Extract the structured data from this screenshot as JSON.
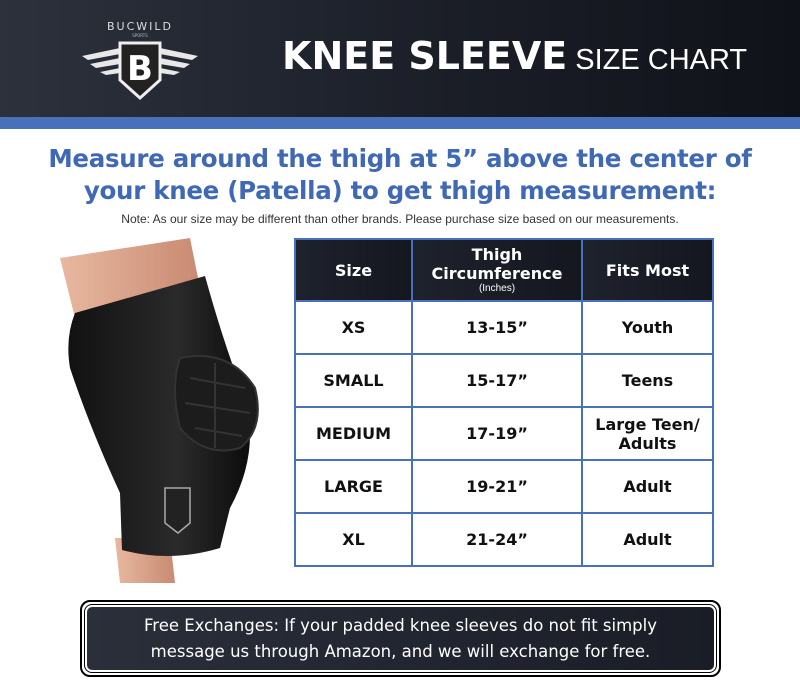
{
  "brand": {
    "logo_text": "BUCWILD SPORTS",
    "logo_letter": "B"
  },
  "header": {
    "title_main": "KNEE SLEEVE",
    "title_sub": "SIZE CHART"
  },
  "colors": {
    "header_bg": "#1a1d26",
    "accent_blue": "#4870bb",
    "headline_blue": "#3f68b5"
  },
  "headline": {
    "line1": "Measure around the thigh at 5” above the center of",
    "line2": "your knee (Patella) to get thigh measurement:"
  },
  "note": "Note: As our size may be different than other brands. Please purchase size based on our measurements.",
  "table": {
    "headers": [
      {
        "label": "Size"
      },
      {
        "label": "Thigh Circumference",
        "sub": "(Inches)"
      },
      {
        "label": "Fits Most"
      }
    ],
    "rows": [
      [
        "XS",
        "13-15”",
        "Youth"
      ],
      [
        "SMALL",
        "15-17”",
        "Teens"
      ],
      [
        "MEDIUM",
        "17-19”",
        "Large Teen/ Adults"
      ],
      [
        "LARGE",
        "19-21”",
        "Adult"
      ],
      [
        "XL",
        "21-24”",
        "Adult"
      ]
    ]
  },
  "footer": {
    "line1": "Free Exchanges: If your padded knee sleeves do not fit simply",
    "line2": "message us through Amazon, and we will exchange for free."
  }
}
